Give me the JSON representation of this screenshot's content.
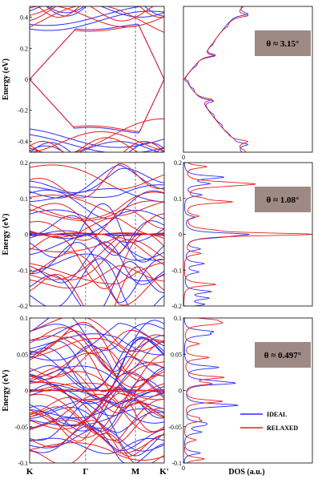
{
  "chart_data": [
    {
      "type": "line",
      "panel": "band-structure",
      "angle_label": "θ ≈ 3.15°",
      "ylabel": "Energy (eV)",
      "ylim": [
        -0.47,
        0.47
      ],
      "yticks": [
        -0.4,
        -0.2,
        0,
        0.2,
        0.4
      ],
      "ytick_labels": [
        "-0.4",
        "-0.2",
        "0",
        "0.2",
        "0.4"
      ],
      "x": [
        "K",
        "Γ",
        "M",
        "K'"
      ],
      "series": [
        {
          "name": "IDEAL",
          "color": "#2b2bff",
          "values": [
            0.0,
            0.345,
            0.36,
            0.0
          ]
        },
        {
          "name": "RELAXED",
          "color": "#e81c1c",
          "values": [
            0.0,
            0.335,
            0.35,
            0.0
          ]
        }
      ]
    },
    {
      "type": "line",
      "panel": "density-of-states",
      "angle_label": "θ ≈ 3.15°",
      "ylim": [
        -0.47,
        0.47
      ],
      "yticks": [],
      "ytick_labels": [],
      "x_origin_label": "0",
      "series": [
        {
          "name": "IDEAL",
          "color": "#2b2bff",
          "peaks": [
            [
              0.155,
              1.0
            ],
            [
              -0.14,
              1.0
            ],
            [
              0.42,
              1.0
            ],
            [
              -0.42,
              1.0
            ]
          ]
        },
        {
          "name": "RELAXED",
          "color": "#e81c1c",
          "peaks": [
            [
              0.15,
              1.0
            ],
            [
              -0.13,
              1.0
            ],
            [
              0.41,
              1.0
            ],
            [
              -0.4,
              1.0
            ]
          ]
        }
      ]
    },
    {
      "type": "line",
      "panel": "band-structure",
      "angle_label": "θ ≈ 1.08°",
      "ylabel": "Energy (eV)",
      "ylim": [
        -0.2,
        0.2
      ],
      "yticks": [
        -0.2,
        -0.1,
        0,
        0.1,
        0.2
      ],
      "ytick_labels": [
        "-0.2",
        "-0.1",
        "0",
        "0.1",
        "0.2"
      ],
      "x": [
        "K",
        "Γ",
        "M",
        "K'"
      ],
      "series": [
        {
          "name": "IDEAL",
          "color": "#2b2bff",
          "values": [
            0.0,
            0.035,
            0.03,
            0.0
          ]
        },
        {
          "name": "RELAXED",
          "color": "#e81c1c",
          "values": [
            0.0,
            0.06,
            0.05,
            0.0
          ]
        }
      ]
    },
    {
      "type": "line",
      "panel": "density-of-states",
      "angle_label": "θ ≈ 1.08°",
      "ylim": [
        -0.2,
        0.2
      ],
      "yticks": [
        -0.2,
        -0.1,
        0,
        0.1,
        0.2
      ],
      "ytick_labels": [
        "-0.2",
        "-0.1",
        "0",
        "0.1",
        "0.2"
      ],
      "series": [
        {
          "name": "IDEAL",
          "color": "#2b2bff",
          "peaks": [
            [
              0.0,
              0.45
            ],
            [
              0.16,
              0.2
            ],
            [
              -0.16,
              0.2
            ]
          ]
        },
        {
          "name": "RELAXED",
          "color": "#e81c1c",
          "peaks": [
            [
              0.0,
              1.0
            ],
            [
              0.14,
              0.25
            ],
            [
              -0.14,
              0.25
            ]
          ]
        }
      ]
    },
    {
      "type": "line",
      "panel": "band-structure",
      "angle_label": "θ ≈ 0.497°",
      "ylabel": "Energy (eV)",
      "ylim": [
        -0.1,
        0.1
      ],
      "yticks": [
        -0.1,
        -0.05,
        0,
        0.05,
        0.1
      ],
      "ytick_labels": [
        "-0.1",
        "-0.05",
        "0",
        "0.05",
        "0.1"
      ],
      "xlabels": [
        "K",
        "Γ",
        "M",
        "K'"
      ],
      "series": [
        {
          "name": "IDEAL",
          "color": "#2b2bff",
          "values": [
            0.0,
            0.01,
            0.01,
            0.0
          ]
        },
        {
          "name": "RELAXED",
          "color": "#e81c1c",
          "values": [
            0.0,
            0.018,
            0.015,
            0.0
          ]
        }
      ]
    },
    {
      "type": "line",
      "panel": "density-of-states",
      "angle_label": "θ ≈ 0.497°",
      "ylim": [
        -0.1,
        0.1
      ],
      "yticks": [
        -0.1,
        -0.05,
        0,
        0.05,
        0.1
      ],
      "ytick_labels": [
        "-0.1",
        "-0.05",
        "0",
        "0.05",
        "0.1"
      ],
      "x_origin_label": "0",
      "xlabel": "DOS (a.u.)",
      "legend": [
        "IDEAL",
        "RELAXED"
      ],
      "legend_position": "bottom-right",
      "series": [
        {
          "name": "IDEAL",
          "color": "#2b2bff",
          "peaks": [
            [
              0.01,
              0.35
            ],
            [
              -0.02,
              0.3
            ]
          ]
        },
        {
          "name": "RELAXED",
          "color": "#e81c1c",
          "peaks": [
            [
              0.018,
              0.3
            ],
            [
              -0.015,
              0.3
            ]
          ]
        }
      ]
    }
  ]
}
